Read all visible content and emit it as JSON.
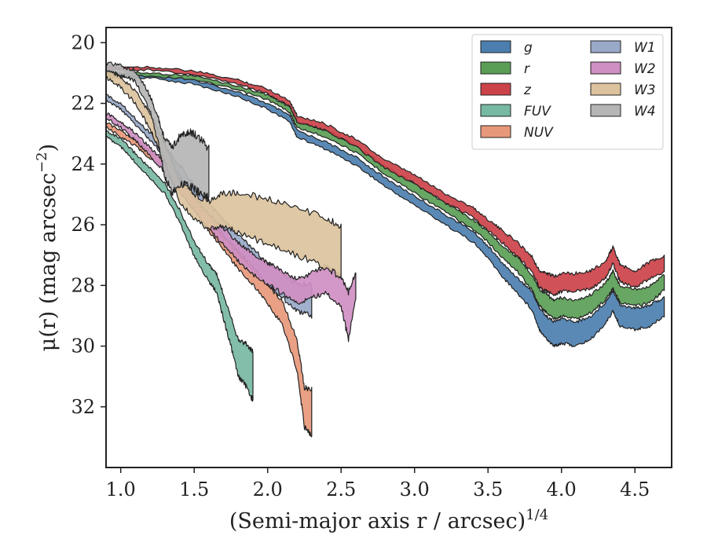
{
  "chart_data": {
    "type": "area",
    "title": "",
    "xlabel": "(Semi-major axis r / arcsec)",
    "xlabel_sup": "1/4",
    "ylabel": "μ(r) (mag arcsec",
    "ylabel_sup": "−2",
    "ylabel_close": ")",
    "xlim": [
      0.9,
      4.75
    ],
    "ylim": [
      34.0,
      19.5
    ],
    "y_inverted": true,
    "x_ticks": [
      1.0,
      1.5,
      2.0,
      2.5,
      3.0,
      3.5,
      4.0,
      4.5
    ],
    "x_tick_labels": [
      "1.0",
      "1.5",
      "2.0",
      "2.5",
      "3.0",
      "3.5",
      "4.0",
      "4.5"
    ],
    "y_ticks": [
      20,
      22,
      24,
      26,
      28,
      30,
      32
    ],
    "y_tick_labels": [
      "20",
      "22",
      "24",
      "26",
      "28",
      "30",
      "32"
    ],
    "grid": false,
    "legend_placement": "top-right",
    "legend_columns": 2,
    "series": [
      {
        "name": "g",
        "color": "#4c7fb0",
        "x": [
          0.9,
          1.2,
          1.5,
          1.8,
          2.0,
          2.15,
          2.2,
          2.4,
          2.6,
          2.8,
          3.0,
          3.2,
          3.4,
          3.5,
          3.6,
          3.7,
          3.8,
          3.85,
          3.9,
          3.95,
          4.0,
          4.1,
          4.2,
          4.3,
          4.35,
          4.4,
          4.5,
          4.6,
          4.7
        ],
        "y": [
          21.1,
          21.1,
          21.3,
          21.7,
          22.1,
          22.5,
          23.0,
          23.4,
          23.9,
          24.6,
          25.2,
          25.8,
          26.4,
          26.9,
          27.5,
          28.0,
          28.5,
          29.1,
          29.4,
          29.6,
          29.5,
          29.6,
          29.4,
          28.9,
          28.5,
          29.0,
          29.1,
          29.0,
          28.7
        ],
        "width": [
          0.12,
          0.12,
          0.14,
          0.16,
          0.18,
          0.2,
          0.22,
          0.24,
          0.26,
          0.28,
          0.3,
          0.32,
          0.36,
          0.4,
          0.45,
          0.5,
          0.6,
          0.7,
          0.75,
          0.8,
          0.8,
          0.8,
          0.75,
          0.7,
          0.7,
          0.7,
          0.7,
          0.7,
          0.6
        ]
      },
      {
        "name": "r",
        "color": "#5a9e56",
        "x": [
          0.9,
          1.2,
          1.5,
          1.8,
          2.0,
          2.15,
          2.2,
          2.4,
          2.6,
          2.8,
          3.0,
          3.2,
          3.4,
          3.5,
          3.6,
          3.7,
          3.8,
          3.85,
          3.9,
          3.95,
          4.0,
          4.1,
          4.2,
          4.3,
          4.35,
          4.4,
          4.5,
          4.6,
          4.7
        ],
        "y": [
          21.05,
          21.05,
          21.15,
          21.5,
          21.8,
          22.2,
          22.7,
          23.0,
          23.5,
          24.2,
          24.8,
          25.4,
          26.0,
          26.4,
          26.9,
          27.3,
          27.9,
          28.4,
          28.6,
          28.8,
          28.7,
          28.8,
          28.6,
          28.2,
          27.8,
          28.3,
          28.4,
          28.3,
          27.9
        ],
        "width": [
          0.1,
          0.1,
          0.12,
          0.14,
          0.16,
          0.18,
          0.2,
          0.22,
          0.24,
          0.26,
          0.28,
          0.3,
          0.32,
          0.35,
          0.4,
          0.45,
          0.5,
          0.55,
          0.6,
          0.6,
          0.6,
          0.6,
          0.6,
          0.55,
          0.55,
          0.55,
          0.55,
          0.55,
          0.5
        ]
      },
      {
        "name": "z",
        "color": "#cc4249",
        "x": [
          0.9,
          1.2,
          1.5,
          1.8,
          2.0,
          2.15,
          2.2,
          2.4,
          2.6,
          2.8,
          3.0,
          3.2,
          3.4,
          3.5,
          3.6,
          3.7,
          3.8,
          3.85,
          3.9,
          3.95,
          4.0,
          4.1,
          4.2,
          4.3,
          4.35,
          4.4,
          4.5,
          4.6,
          4.7
        ],
        "y": [
          20.85,
          20.85,
          21.0,
          21.3,
          21.6,
          22.0,
          22.5,
          22.8,
          23.3,
          24.0,
          24.5,
          25.1,
          25.6,
          26.0,
          26.4,
          26.8,
          27.3,
          27.8,
          27.9,
          28.0,
          27.9,
          27.9,
          27.8,
          27.5,
          27.0,
          27.6,
          27.8,
          27.5,
          27.3
        ],
        "width": [
          0.1,
          0.1,
          0.12,
          0.14,
          0.16,
          0.18,
          0.2,
          0.22,
          0.24,
          0.26,
          0.28,
          0.3,
          0.32,
          0.35,
          0.4,
          0.45,
          0.5,
          0.55,
          0.6,
          0.6,
          0.6,
          0.6,
          0.6,
          0.55,
          0.55,
          0.55,
          0.55,
          0.55,
          0.5
        ]
      },
      {
        "name": "FUV",
        "color": "#77b9a2",
        "x": [
          0.9,
          1.0,
          1.1,
          1.2,
          1.3,
          1.4,
          1.5,
          1.6,
          1.65,
          1.7,
          1.75,
          1.8,
          1.85,
          1.9
        ],
        "y": [
          23.0,
          23.3,
          23.8,
          24.3,
          24.8,
          25.7,
          26.8,
          27.6,
          27.9,
          28.7,
          29.5,
          30.4,
          30.6,
          31.0
        ],
        "width": [
          0.2,
          0.25,
          0.3,
          0.3,
          0.35,
          0.4,
          0.5,
          0.55,
          0.6,
          0.8,
          1.0,
          1.2,
          1.4,
          1.6
        ]
      },
      {
        "name": "NUV",
        "color": "#e8987a",
        "x": [
          0.9,
          1.0,
          1.1,
          1.2,
          1.3,
          1.4,
          1.5,
          1.6,
          1.7,
          1.8,
          1.9,
          2.0,
          2.1,
          2.2,
          2.25,
          2.3
        ],
        "y": [
          22.7,
          23.0,
          23.3,
          23.7,
          24.0,
          24.6,
          25.3,
          26.0,
          26.6,
          27.2,
          27.7,
          28.3,
          28.9,
          30.3,
          32.0,
          32.2
        ],
        "width": [
          0.15,
          0.2,
          0.2,
          0.25,
          0.25,
          0.3,
          0.35,
          0.4,
          0.45,
          0.5,
          0.55,
          0.6,
          0.8,
          1.0,
          1.3,
          1.5
        ]
      },
      {
        "name": "W1",
        "color": "#99a9c8",
        "x": [
          0.9,
          1.0,
          1.1,
          1.2,
          1.3,
          1.4,
          1.5,
          1.6,
          1.7,
          1.8,
          1.9,
          2.0,
          2.1,
          2.2,
          2.3
        ],
        "y": [
          21.8,
          22.1,
          22.6,
          23.1,
          23.6,
          24.2,
          24.9,
          25.5,
          26.1,
          26.6,
          27.1,
          27.6,
          28.0,
          28.4,
          28.5
        ],
        "width": [
          0.15,
          0.2,
          0.2,
          0.25,
          0.3,
          0.35,
          0.4,
          0.45,
          0.5,
          0.55,
          0.6,
          0.7,
          0.8,
          0.9,
          1.0
        ]
      },
      {
        "name": "W2",
        "color": "#cf8fc2",
        "x": [
          0.9,
          1.0,
          1.1,
          1.2,
          1.3,
          1.4,
          1.5,
          1.6,
          1.7,
          1.8,
          1.9,
          2.0,
          2.1,
          2.2,
          2.3,
          2.4,
          2.5,
          2.55,
          2.6
        ],
        "y": [
          22.4,
          22.7,
          23.1,
          23.6,
          24.1,
          24.7,
          25.3,
          25.9,
          26.4,
          26.9,
          27.3,
          27.6,
          27.9,
          28.2,
          28.0,
          27.8,
          28.2,
          29.0,
          28.0
        ],
        "width": [
          0.15,
          0.2,
          0.25,
          0.3,
          0.35,
          0.4,
          0.45,
          0.5,
          0.55,
          0.6,
          0.65,
          0.7,
          0.75,
          0.8,
          0.8,
          0.9,
          1.0,
          1.6,
          0.9
        ]
      },
      {
        "name": "W3",
        "color": "#dcc39d",
        "x": [
          0.9,
          1.0,
          1.1,
          1.2,
          1.3,
          1.4,
          1.5,
          1.6,
          1.7,
          1.8,
          2.0,
          2.2,
          2.4,
          2.5
        ],
        "y": [
          21.0,
          21.3,
          21.8,
          22.6,
          23.6,
          24.9,
          25.4,
          25.7,
          25.5,
          25.6,
          25.9,
          26.2,
          26.6,
          26.9
        ],
        "width": [
          0.3,
          0.35,
          0.4,
          0.5,
          0.6,
          0.7,
          0.8,
          0.9,
          1.1,
          1.3,
          1.5,
          1.6,
          1.6,
          1.7
        ]
      },
      {
        "name": "W4",
        "color": "#b5b5b5",
        "x": [
          0.9,
          1.0,
          1.1,
          1.2,
          1.25,
          1.3,
          1.35,
          1.4,
          1.45,
          1.5,
          1.55,
          1.6
        ],
        "y": [
          20.8,
          20.9,
          21.1,
          22.0,
          22.8,
          23.8,
          24.2,
          23.9,
          23.8,
          23.9,
          24.1,
          24.3
        ],
        "width": [
          0.25,
          0.3,
          0.35,
          0.5,
          0.8,
          1.2,
          1.5,
          1.6,
          1.7,
          1.8,
          1.8,
          1.6
        ]
      }
    ]
  }
}
